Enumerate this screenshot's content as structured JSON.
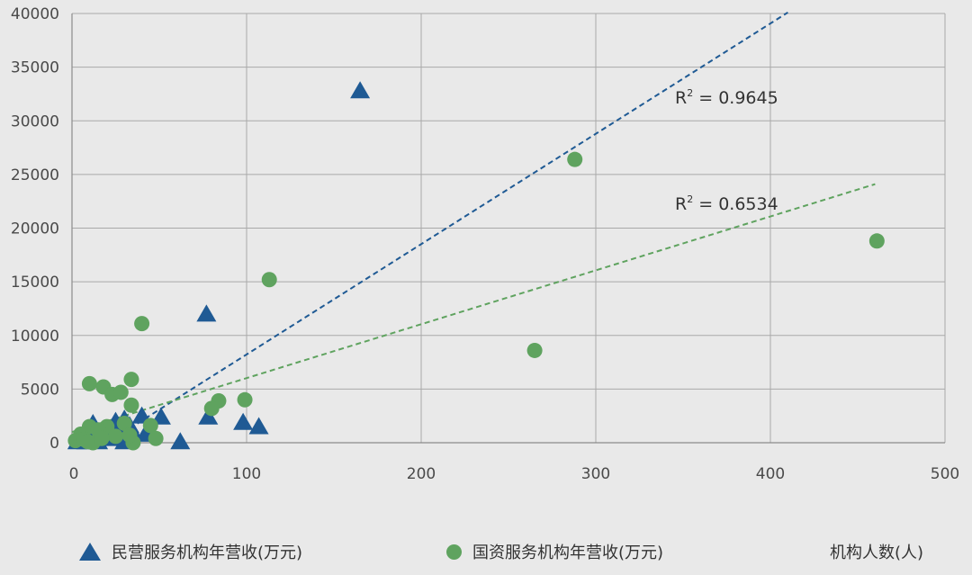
{
  "chart_data": {
    "type": "scatter",
    "xlabel": "机构人数(人)",
    "xlim": [
      0,
      500
    ],
    "ylim": [
      0,
      40000
    ],
    "xticks": [
      "0",
      "100",
      "200",
      "300",
      "400",
      "500"
    ],
    "yticks": [
      "0",
      "5000",
      "10000",
      "15000",
      "20000",
      "25000",
      "30000",
      "35000",
      "40000"
    ],
    "grid": true,
    "legend_position": "bottom",
    "series": [
      {
        "name": "民营服务机构年营收(万元)",
        "marker": "triangle",
        "color": "#1f5a94",
        "points": [
          [
            165,
            32700
          ],
          [
            77,
            11900
          ],
          [
            51,
            2300
          ],
          [
            40,
            2400
          ],
          [
            78,
            2300
          ],
          [
            98,
            1800
          ],
          [
            107,
            1400
          ],
          [
            62,
            0
          ],
          [
            42,
            700
          ],
          [
            30,
            2100
          ],
          [
            25,
            1900
          ],
          [
            12,
            1700
          ],
          [
            20,
            1200
          ],
          [
            33,
            1500
          ],
          [
            27,
            900
          ],
          [
            18,
            600
          ],
          [
            10,
            500
          ],
          [
            5,
            200
          ],
          [
            15,
            0
          ],
          [
            22,
            300
          ],
          [
            35,
            800
          ],
          [
            8,
            0
          ],
          [
            30,
            0
          ],
          [
            3,
            0
          ],
          [
            14,
            400
          ]
        ],
        "trendline": {
          "r2_label": "R² = 0.9645",
          "from": [
            20,
            0
          ],
          "to": [
            410,
            40100
          ]
        }
      },
      {
        "name": "国资服务机构年营收(万元)",
        "marker": "circle",
        "color": "#5fa35f",
        "points": [
          [
            288,
            26400
          ],
          [
            461,
            18800
          ],
          [
            113,
            15200
          ],
          [
            265,
            8600
          ],
          [
            40,
            11100
          ],
          [
            34,
            5900
          ],
          [
            10,
            5500
          ],
          [
            18,
            5200
          ],
          [
            23,
            4500
          ],
          [
            28,
            4700
          ],
          [
            99,
            4000
          ],
          [
            84,
            3900
          ],
          [
            80,
            3200
          ],
          [
            34,
            3500
          ],
          [
            45,
            1600
          ],
          [
            48,
            400
          ],
          [
            35,
            0
          ],
          [
            30,
            1800
          ],
          [
            20,
            1500
          ],
          [
            10,
            1500
          ],
          [
            15,
            1200
          ],
          [
            5,
            800
          ],
          [
            2,
            200
          ],
          [
            7,
            300
          ],
          [
            12,
            0
          ],
          [
            25,
            600
          ],
          [
            33,
            700
          ],
          [
            17,
            400
          ],
          [
            9,
            100
          ]
        ],
        "trendline": {
          "r2_label": "R² = 0.6534",
          "from": [
            0,
            1000
          ],
          "to": [
            460,
            24100
          ]
        }
      }
    ]
  },
  "legend": {
    "series1_label": "民营服务机构年营收(万元)",
    "series2_label": "国资服务机构年营收(万元)",
    "xlabel": "机构人数(人)"
  }
}
